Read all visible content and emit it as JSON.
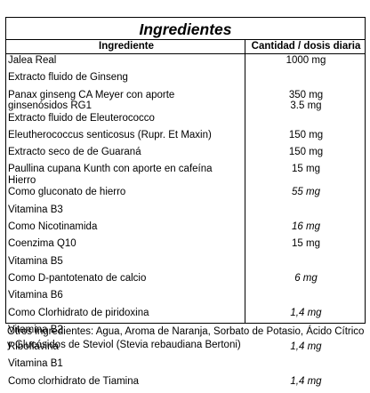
{
  "table": {
    "title": "Ingredientes",
    "col_ingredient": "Ingrediente",
    "col_amount": "Cantidad / dosis diaria"
  },
  "rows": [
    {
      "name": "Jalea Real",
      "amount": "1000 mg",
      "italic": false
    },
    {
      "name": "Extracto fluido de Ginseng",
      "amount": "",
      "italic": false
    },
    {
      "name_lines": [
        "Panax ginseng CA Meyer con aporte",
        "ginsenósidos RG1"
      ],
      "amount_lines": [
        "350 mg",
        "3.5 mg"
      ],
      "italic": false
    },
    {
      "name": "Extracto fluido de Eleuterococco",
      "amount": "",
      "italic": false
    },
    {
      "name": "Eleutherococcus senticosus (Rupr. Et Maxin)",
      "amount": "150 mg",
      "italic": false
    },
    {
      "name": "Extracto seco de de Guaraná",
      "amount": "150 mg",
      "italic": false
    },
    {
      "name_lines": [
        "Paullina cupana Kunth con aporte en cafeína",
        "Hierro"
      ],
      "amount_lines": [
        "15 mg",
        ""
      ],
      "italic": false
    },
    {
      "name": "Como gluconato de hierro",
      "amount": "55 mg",
      "italic": true
    },
    {
      "name": "Vitamina B3",
      "amount": "",
      "italic": false
    },
    {
      "name": "Como Nicotinamida",
      "amount": "16 mg",
      "italic": true
    },
    {
      "name": "Coenzima Q10",
      "amount": "15 mg",
      "italic": false
    },
    {
      "name": "Vitamina B5",
      "amount": "",
      "italic": false
    },
    {
      "name": "Como D-pantotenato de calcio",
      "amount": "6 mg",
      "italic": true
    },
    {
      "name": "Vitamina B6",
      "amount": "",
      "italic": false
    },
    {
      "name": "Como Clorhidrato de piridoxina",
      "amount": "1,4 mg",
      "italic": true
    },
    {
      "name": "Vitamina B2",
      "amount": "",
      "italic": false
    },
    {
      "name": "Riboflavina",
      "amount": "1,4 mg",
      "italic": true
    },
    {
      "name": "Vitamina B1",
      "amount": "",
      "italic": false
    },
    {
      "name": "Como clorhidrato de Tiamina",
      "amount": "1,4 mg",
      "italic": true
    }
  ],
  "others": "Otros ingredientes: Agua, Aroma de Naranja, Sorbato de Potasio, Ácido Cítrico y Glucósidos de Steviol (Stevia rebaudiana Bertoni)"
}
